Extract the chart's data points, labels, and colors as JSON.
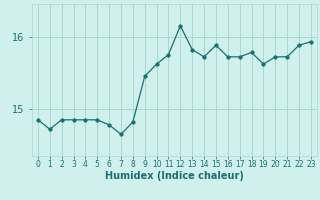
{
  "x": [
    0,
    1,
    2,
    3,
    4,
    5,
    6,
    7,
    8,
    9,
    10,
    11,
    12,
    13,
    14,
    15,
    16,
    17,
    18,
    19,
    20,
    21,
    22,
    23
  ],
  "y": [
    14.85,
    14.72,
    14.85,
    14.85,
    14.85,
    14.85,
    14.78,
    14.65,
    14.82,
    15.45,
    15.62,
    15.75,
    16.15,
    15.82,
    15.72,
    15.88,
    15.72,
    15.72,
    15.78,
    15.62,
    15.72,
    15.72,
    15.88,
    15.93
  ],
  "line_color": "#1a7070",
  "marker": "o",
  "marker_size": 2.5,
  "bg_color": "#cff0ec",
  "grid_color": "#a8d8d0",
  "xlabel": "Humidex (Indice chaleur)",
  "yticks": [
    15,
    16
  ],
  "ylim": [
    14.35,
    16.45
  ],
  "xlim": [
    -0.5,
    23.5
  ],
  "tick_color": "#1a7070",
  "label_color": "#1a7070",
  "xtick_fontsize": 5.5,
  "ytick_fontsize": 7,
  "xlabel_fontsize": 7
}
